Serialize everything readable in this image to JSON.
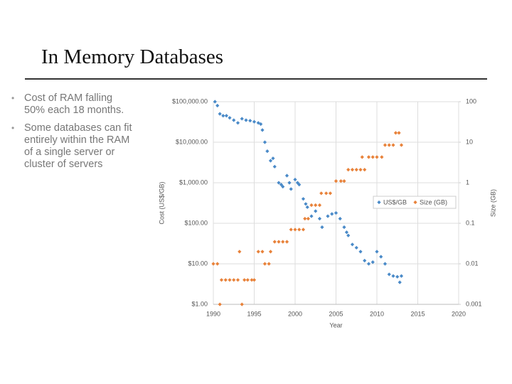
{
  "slide": {
    "title": "In Memory Databases",
    "bullets": [
      "Cost of RAM falling 50% each 18 months.",
      "Some databases can fit entirely within the RAM of a single server or cluster of servers"
    ]
  },
  "chart_data": {
    "type": "scatter",
    "x_label": "Year",
    "y_label": "Cost (US$/GB)",
    "y2_label": "Size (GB)",
    "xlim": [
      1990,
      2020
    ],
    "xticks": [
      1990,
      1995,
      2000,
      2005,
      2010,
      2015,
      2020
    ],
    "ylim": [
      1,
      100000
    ],
    "log_y": true,
    "yticks": [
      {
        "value": 1,
        "label": "$1.00"
      },
      {
        "value": 10,
        "label": "$10.00"
      },
      {
        "value": 100,
        "label": "$100.00"
      },
      {
        "value": 1000,
        "label": "$1,000.00"
      },
      {
        "value": 10000,
        "label": "$10,000.00"
      },
      {
        "value": 100000,
        "label": "$100,000.00"
      }
    ],
    "y2lim": [
      0.001,
      100
    ],
    "log_y2": true,
    "y2ticks": [
      0.001,
      0.01,
      0.1,
      1,
      10,
      100
    ],
    "grid": true,
    "legend": "center right",
    "series": [
      {
        "name": "US$/GB",
        "color": "#4a8ac8",
        "x": [
          1990.2,
          1990.5,
          1990.8,
          1991.2,
          1991.6,
          1992,
          1992.5,
          1993,
          1993.5,
          1994,
          1994.5,
          1995,
          1995.5,
          1995.8,
          1996,
          1996.3,
          1996.6,
          1997,
          1997.3,
          1997.5,
          1998,
          1998.3,
          1998.5,
          1999,
          1999.3,
          1999.5,
          2000,
          2000.3,
          2000.5,
          2001,
          2001.3,
          2001.5,
          2002,
          2002.5,
          2003,
          2003.3,
          2004,
          2004.5,
          2005,
          2005.5,
          2006,
          2006.3,
          2006.5,
          2007,
          2007.5,
          2008,
          2008.5,
          2009,
          2009.5,
          2010,
          2010.5,
          2011,
          2011.5,
          2012,
          2012.5,
          2012.8,
          2013
        ],
        "values": [
          100000,
          80000,
          50000,
          45000,
          45000,
          40000,
          35000,
          30000,
          38000,
          35000,
          34000,
          32000,
          30000,
          28000,
          20000,
          10000,
          6000,
          3500,
          4000,
          2500,
          1000,
          900,
          800,
          1500,
          1000,
          700,
          1200,
          1000,
          900,
          400,
          300,
          250,
          150,
          200,
          130,
          80,
          150,
          170,
          180,
          130,
          80,
          60,
          50,
          30,
          25,
          20,
          12,
          10,
          11,
          20,
          15,
          10,
          5.5,
          5,
          4.8,
          3.5,
          5
        ]
      },
      {
        "name": "Size (GB)",
        "color": "#e8823a",
        "axis": "y2",
        "x": [
          1990,
          1990.5,
          1990.8,
          1991,
          1991.5,
          1992,
          1992.5,
          1993,
          1993.2,
          1993.5,
          1993.8,
          1994.2,
          1994.7,
          1995,
          1995.5,
          1996,
          1996.3,
          1996.8,
          1997,
          1997.5,
          1998,
          1998.5,
          1999,
          1999.5,
          2000,
          2000.5,
          2001,
          2001.2,
          2001.6,
          2002,
          2002.5,
          2003,
          2003.2,
          2003.8,
          2004.3,
          2005,
          2005.6,
          2006,
          2006.5,
          2007,
          2007.5,
          2008,
          2008.5,
          2008.2,
          2009,
          2009.5,
          2010,
          2010.6,
          2011,
          2011.5,
          2012,
          2012.3,
          2012.7,
          2013
        ],
        "values": [
          0.01,
          0.01,
          0.001,
          0.004,
          0.004,
          0.004,
          0.004,
          0.004,
          0.02,
          0.001,
          0.004,
          0.004,
          0.004,
          0.004,
          0.02,
          0.02,
          0.01,
          0.01,
          0.02,
          0.035,
          0.035,
          0.035,
          0.035,
          0.07,
          0.07,
          0.07,
          0.07,
          0.13,
          0.13,
          0.28,
          0.28,
          0.28,
          0.55,
          0.55,
          0.55,
          1.1,
          1.1,
          1.1,
          2.1,
          2.1,
          2.1,
          2.1,
          2.1,
          4.3,
          4.3,
          4.3,
          4.3,
          4.3,
          8.5,
          8.5,
          8.5,
          17,
          17,
          8.5
        ]
      }
    ]
  }
}
